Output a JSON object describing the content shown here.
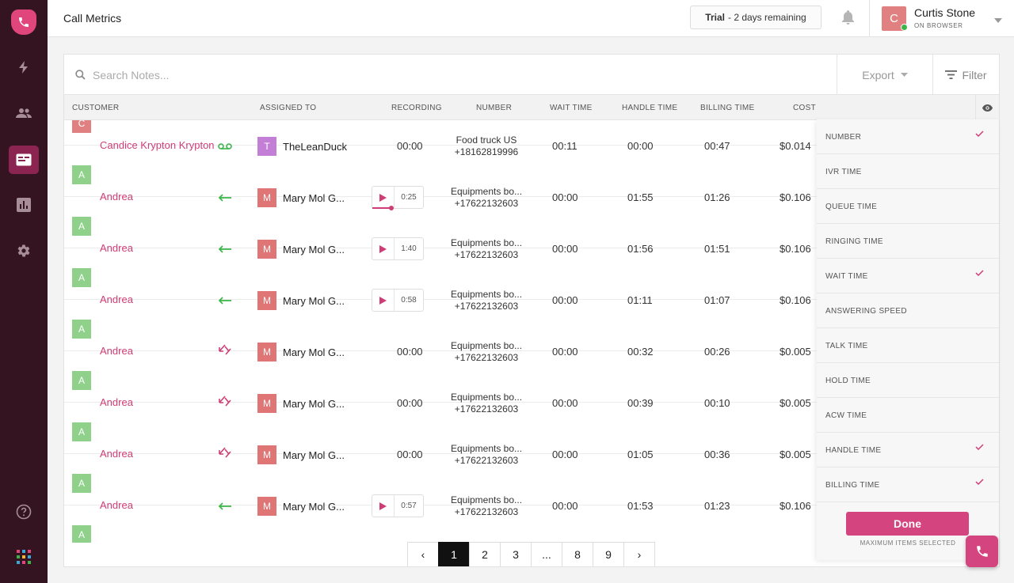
{
  "header": {
    "title": "Call Metrics",
    "trial_bold": "Trial",
    "trial_rest": "- 2 days remaining",
    "user": {
      "initial": "C",
      "name": "Curtis Stone",
      "status": "ON BROWSER"
    }
  },
  "search": {
    "placeholder": "Search Notes..."
  },
  "toolbar": {
    "export_label": "Export",
    "filter_label": "Filter"
  },
  "columns": {
    "customer": "CUSTOMER",
    "assigned_to": "ASSIGNED TO",
    "recording": "RECORDING",
    "number": "NUMBER",
    "wait_time": "WAIT TIME",
    "handle_time": "HANDLE TIME",
    "billing_time": "BILLING TIME",
    "cost": "COST"
  },
  "rows": [
    {
      "initial": "C",
      "customer": "Candice Krypton Krypton",
      "direction": "voicemail",
      "assignee_initial": "T",
      "assignee": "TheLeanDuck",
      "recording": "00:00",
      "has_player": false,
      "number_name": "Food truck US",
      "number": "+18162819996",
      "wait": "00:11",
      "handle": "00:00",
      "billing": "00:47",
      "cost": "$0.014"
    },
    {
      "initial": "A",
      "customer": "Andrea",
      "direction": "inbound",
      "assignee_initial": "M",
      "assignee": "Mary Mol G...",
      "recording": "0:25",
      "has_player": true,
      "playing": true,
      "number_name": "Equipments bo...",
      "number": "+17622132603",
      "wait": "00:00",
      "handle": "01:55",
      "billing": "01:26",
      "cost": "$0.106"
    },
    {
      "initial": "A",
      "customer": "Andrea",
      "direction": "inbound",
      "assignee_initial": "M",
      "assignee": "Mary Mol G...",
      "recording": "1:40",
      "has_player": true,
      "number_name": "Equipments bo...",
      "number": "+17622132603",
      "wait": "00:00",
      "handle": "01:56",
      "billing": "01:51",
      "cost": "$0.106"
    },
    {
      "initial": "A",
      "customer": "Andrea",
      "direction": "inbound",
      "assignee_initial": "M",
      "assignee": "Mary Mol G...",
      "recording": "0:58",
      "has_player": true,
      "number_name": "Equipments bo...",
      "number": "+17622132603",
      "wait": "00:00",
      "handle": "01:11",
      "billing": "01:07",
      "cost": "$0.106"
    },
    {
      "initial": "A",
      "customer": "Andrea",
      "direction": "missed",
      "assignee_initial": "M",
      "assignee": "Mary Mol G...",
      "recording": "00:00",
      "has_player": false,
      "number_name": "Equipments bo...",
      "number": "+17622132603",
      "wait": "00:00",
      "handle": "00:32",
      "billing": "00:26",
      "cost": "$0.005"
    },
    {
      "initial": "A",
      "customer": "Andrea",
      "direction": "missed",
      "assignee_initial": "M",
      "assignee": "Mary Mol G...",
      "recording": "00:00",
      "has_player": false,
      "number_name": "Equipments bo...",
      "number": "+17622132603",
      "wait": "00:00",
      "handle": "00:39",
      "billing": "00:10",
      "cost": "$0.005"
    },
    {
      "initial": "A",
      "customer": "Andrea",
      "direction": "missed",
      "assignee_initial": "M",
      "assignee": "Mary Mol G...",
      "recording": "00:00",
      "has_player": false,
      "number_name": "Equipments bo...",
      "number": "+17622132603",
      "wait": "00:00",
      "handle": "01:05",
      "billing": "00:36",
      "cost": "$0.005"
    },
    {
      "initial": "A",
      "customer": "Andrea",
      "direction": "inbound",
      "assignee_initial": "M",
      "assignee": "Mary Mol G...",
      "recording": "0:57",
      "has_player": true,
      "number_name": "Equipments bo...",
      "number": "+17622132603",
      "wait": "00:00",
      "handle": "01:53",
      "billing": "01:23",
      "cost": "$0.106"
    },
    {
      "initial": "A"
    }
  ],
  "pagination": {
    "prev": "‹",
    "pages": [
      "1",
      "2",
      "3",
      "...",
      "8",
      "9"
    ],
    "active": "1",
    "next": "›"
  },
  "column_picker": {
    "items": [
      {
        "label": "NUMBER",
        "checked": true
      },
      {
        "label": "IVR TIME",
        "checked": false
      },
      {
        "label": "QUEUE TIME",
        "checked": false
      },
      {
        "label": "RINGING TIME",
        "checked": false
      },
      {
        "label": "WAIT TIME",
        "checked": true
      },
      {
        "label": "ANSWERING SPEED",
        "checked": false
      },
      {
        "label": "TALK TIME",
        "checked": false
      },
      {
        "label": "HOLD TIME",
        "checked": false
      },
      {
        "label": "ACW TIME",
        "checked": false
      },
      {
        "label": "HANDLE TIME",
        "checked": true
      },
      {
        "label": "BILLING TIME",
        "checked": true
      }
    ],
    "done_label": "Done",
    "note": "MAXIMUM ITEMS SELECTED"
  },
  "colors": {
    "accent": "#d4457f",
    "sidebar": "#341420",
    "customer_c": "#e08080",
    "customer_a": "#8fd18b",
    "assignee_t": "#c37fd6",
    "assignee_m": "#e07575",
    "inbound": "#3bb54a",
    "missed": "#cf3d76"
  },
  "icons": {
    "sidebar": [
      "phone-logo-icon",
      "bolt-icon",
      "contacts-icon",
      "call-metrics-icon",
      "analytics-icon",
      "settings-icon",
      "help-icon",
      "apps-grid-icon"
    ],
    "header": [
      "bell-icon",
      "chevron-down-icon"
    ],
    "toolbar": [
      "search-icon",
      "caret-down-icon",
      "filter-lines-icon",
      "eye-icon"
    ]
  }
}
